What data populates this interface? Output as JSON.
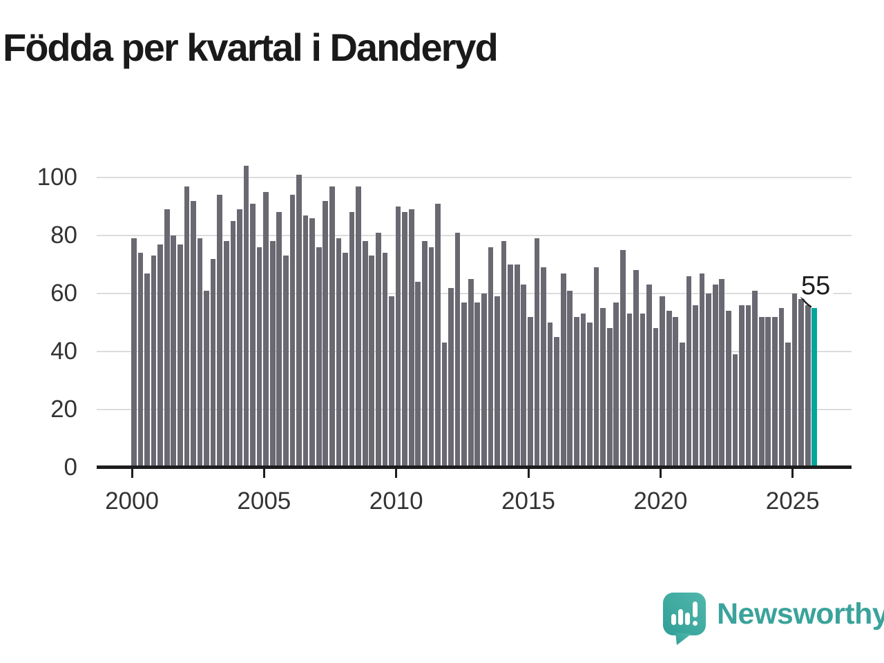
{
  "chart_data": {
    "type": "bar",
    "title": "Födda per kvartal i Danderyd",
    "frequency": "quarterly",
    "x_start": "2000-Q1",
    "x_end": "2025-Q4",
    "x_tick_labels": [
      "2000",
      "2005",
      "2010",
      "2015",
      "2020",
      "2025"
    ],
    "y_tick_labels": [
      "0",
      "20",
      "40",
      "60",
      "80",
      "100"
    ],
    "ylim": [
      0,
      110
    ],
    "grid": true,
    "legend": false,
    "values": [
      79,
      74,
      67,
      73,
      77,
      89,
      80,
      77,
      97,
      92,
      79,
      61,
      72,
      94,
      78,
      85,
      89,
      104,
      91,
      76,
      95,
      78,
      88,
      73,
      94,
      101,
      87,
      86,
      76,
      92,
      97,
      79,
      74,
      88,
      97,
      78,
      73,
      81,
      74,
      59,
      90,
      88,
      89,
      64,
      78,
      76,
      91,
      43,
      62,
      81,
      57,
      65,
      57,
      60,
      76,
      59,
      78,
      70,
      70,
      63,
      52,
      79,
      69,
      50,
      45,
      67,
      61,
      52,
      53,
      50,
      69,
      55,
      48,
      57,
      75,
      53,
      68,
      53,
      63,
      48,
      59,
      54,
      52,
      43,
      66,
      56,
      67,
      60,
      63,
      65,
      54,
      39,
      56,
      56,
      61,
      52,
      52,
      52,
      55,
      43,
      60,
      58,
      56,
      55
    ],
    "highlight_last": true,
    "highlighted_last_value": 55,
    "highlight_label": "55"
  },
  "logo": {
    "brand": "Newsworthy"
  },
  "colors": {
    "bar": "#6a6972",
    "highlight": "#00a69b",
    "grid": "#dcdcdc",
    "axis": "#1d1d1d",
    "text": "#333333",
    "title": "#1a1a1a",
    "logo": "#3aa39b"
  }
}
